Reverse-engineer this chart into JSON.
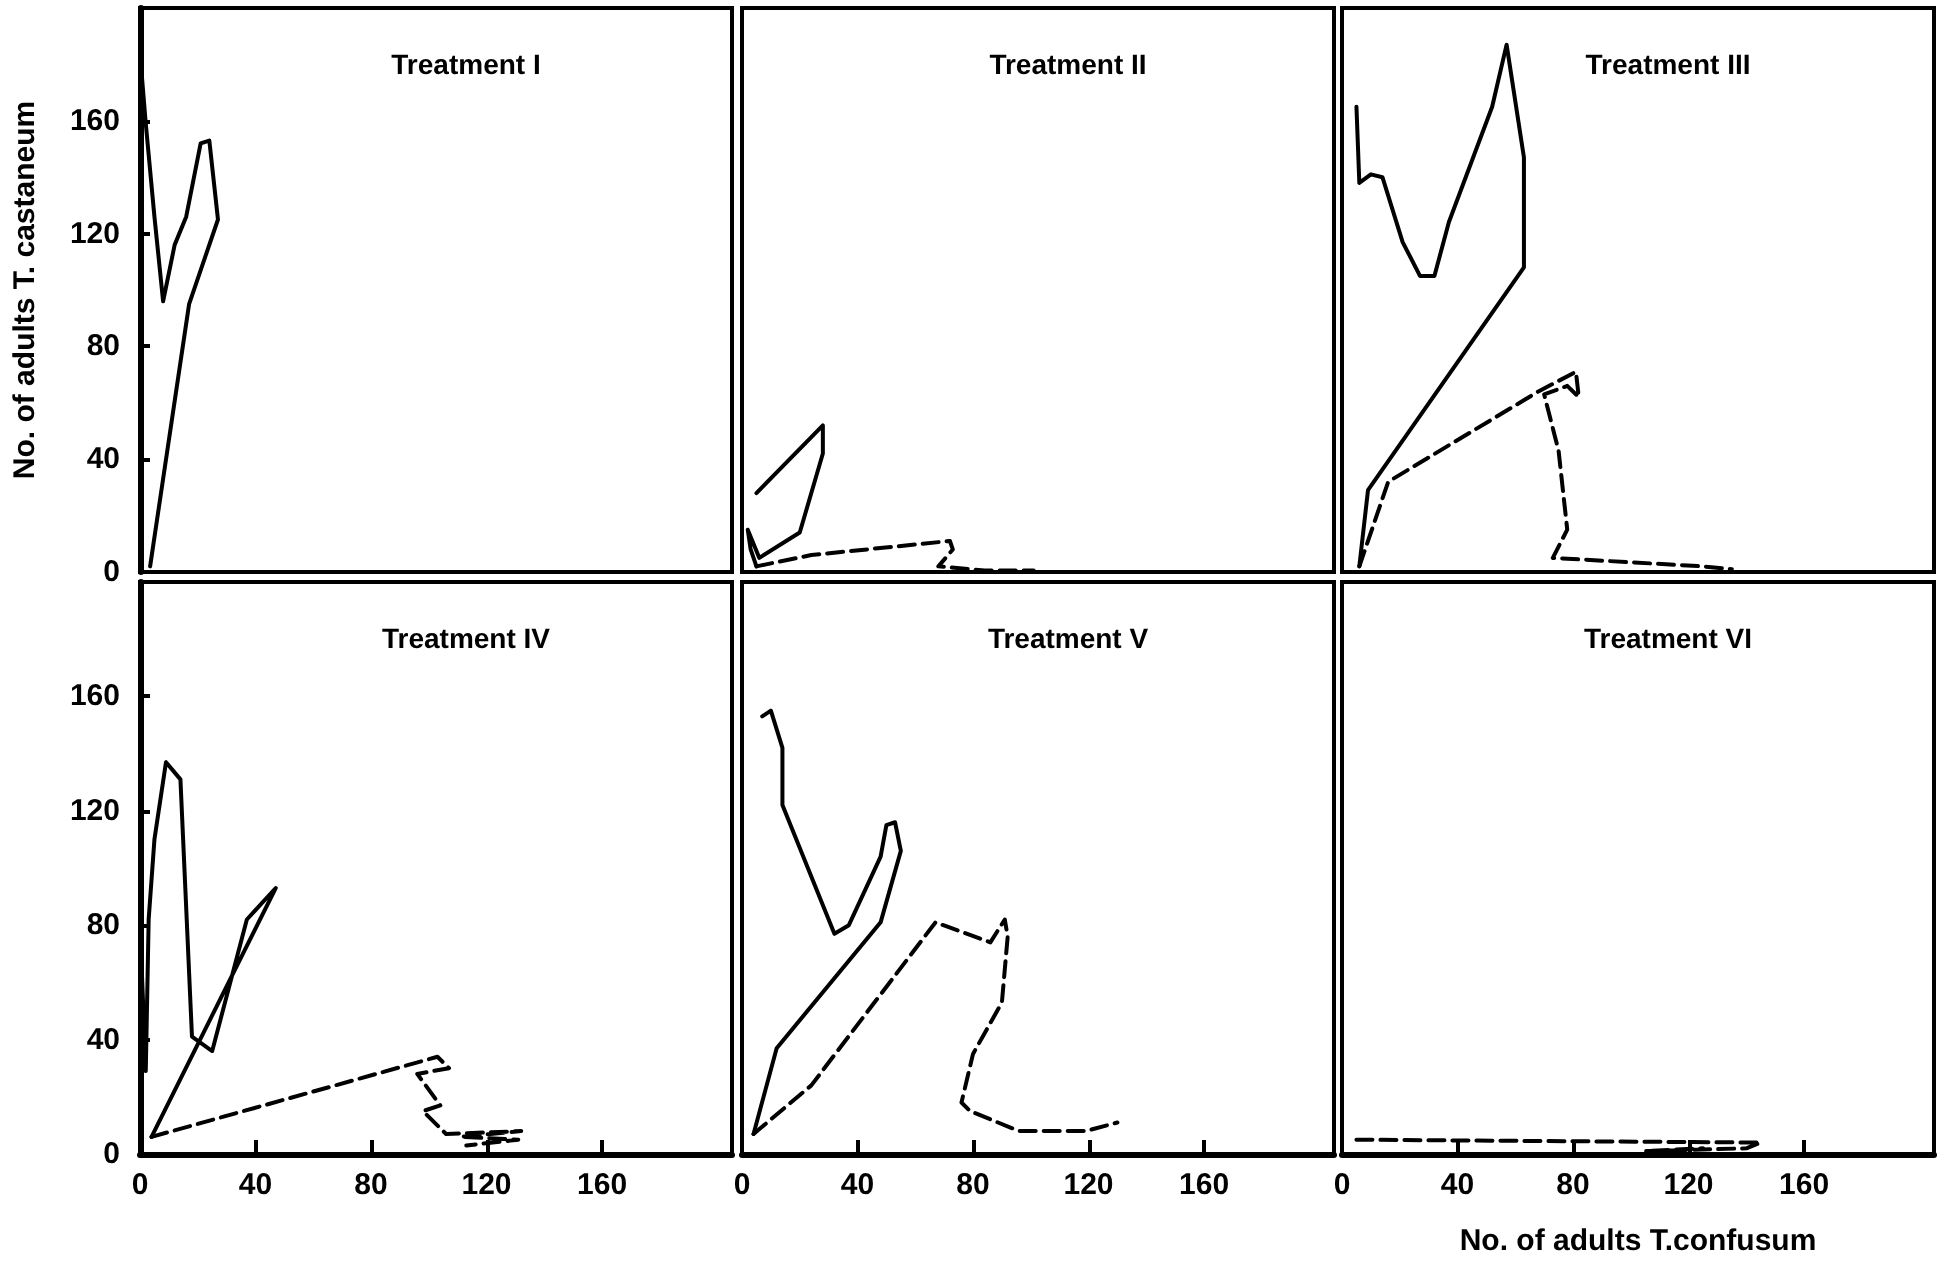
{
  "chart_data": [
    {
      "type": "line",
      "title": "Treatment I",
      "ylabel": "No. of adults T. castaneum",
      "xlim": [
        0,
        205
      ],
      "ylim": [
        0,
        200
      ],
      "xticks": [
        0,
        40,
        80,
        120,
        160
      ],
      "yticks": [
        0,
        40,
        80,
        120,
        160
      ],
      "tick_labels": "y",
      "series": [
        {
          "color": "#000000",
          "line_style": "solid",
          "x": [
            3.5,
            17,
            27,
            24,
            21,
            16,
            12,
            8,
            5,
            2,
            0
          ],
          "values": [
            2,
            95,
            125,
            153,
            152,
            126,
            116,
            96,
            126,
            159,
            184
          ]
        }
      ]
    },
    {
      "type": "line",
      "title": "Treatment II",
      "xlim": [
        0,
        205
      ],
      "ylim": [
        0,
        200
      ],
      "xticks": [
        0,
        40,
        80,
        120,
        160
      ],
      "yticks": [
        0,
        40,
        80,
        120,
        160
      ],
      "tick_labels": false,
      "series": [
        {
          "color": "#000000",
          "line_style": "solid",
          "x": [
            5,
            28,
            28,
            20,
            6,
            2,
            3,
            5
          ],
          "values": [
            28,
            52,
            42,
            14,
            5,
            15,
            8,
            2
          ]
        },
        {
          "color": "#000000",
          "line_style": "dashed",
          "x": [
            5,
            24,
            72,
            73,
            68,
            84,
            101
          ],
          "values": [
            2,
            6,
            11,
            8,
            2,
            0.5,
            0.5
          ]
        }
      ]
    },
    {
      "type": "line",
      "title": "Treatment III",
      "xlim": [
        0,
        205
      ],
      "ylim": [
        0,
        200
      ],
      "xticks": [
        0,
        40,
        80,
        120,
        160
      ],
      "yticks": [
        0,
        40,
        80,
        120,
        160
      ],
      "tick_labels": false,
      "series": [
        {
          "color": "#000000",
          "line_style": "solid",
          "x": [
            6,
            9,
            63,
            63,
            57,
            52,
            37,
            32,
            27,
            21,
            14,
            10,
            6,
            5
          ],
          "values": [
            2,
            29,
            108,
            147,
            187,
            165,
            124,
            105,
            105,
            117,
            140,
            141,
            138,
            165
          ]
        },
        {
          "color": "#000000",
          "line_style": "dashed",
          "x": [
            6,
            16,
            68,
            81,
            82,
            78,
            70,
            75,
            78,
            73,
            125,
            135
          ],
          "values": [
            2,
            32,
            64,
            71,
            62,
            66,
            63,
            43,
            15,
            5,
            2,
            1
          ]
        }
      ]
    },
    {
      "type": "line",
      "title": "Treatment IV",
      "xlim": [
        0,
        205
      ],
      "ylim": [
        0,
        200
      ],
      "xticks": [
        0,
        40,
        80,
        120,
        160
      ],
      "yticks": [
        0,
        40,
        80,
        120,
        160
      ],
      "series": [
        {
          "color": "#000000",
          "line_style": "solid",
          "x": [
            4,
            47,
            37,
            25,
            18,
            14,
            9,
            5,
            3,
            2,
            0,
            1
          ],
          "values": [
            6,
            93,
            82,
            36,
            41,
            131,
            137,
            110,
            82,
            29,
            80,
            38
          ]
        },
        {
          "color": "#000000",
          "line_style": "dashed",
          "x": [
            4,
            103,
            107,
            96,
            104,
            98,
            106,
            132,
            111,
            131,
            113
          ],
          "values": [
            6,
            34,
            30,
            28,
            17,
            15,
            7,
            8,
            6,
            5,
            3
          ]
        }
      ]
    },
    {
      "type": "line",
      "title": "Treatment V",
      "xlim": [
        0,
        205
      ],
      "ylim": [
        0,
        200
      ],
      "xticks": [
        0,
        40,
        80,
        120,
        160
      ],
      "yticks": [
        0,
        40,
        80,
        120,
        160
      ],
      "tick_labels": "x",
      "series": [
        {
          "color": "#000000",
          "line_style": "solid",
          "x": [
            4,
            12,
            48,
            55,
            53,
            50,
            48,
            37,
            32,
            14,
            14,
            10,
            7
          ],
          "values": [
            7,
            37,
            81,
            106,
            116,
            115,
            104,
            80,
            77,
            122,
            142,
            155,
            153
          ]
        },
        {
          "color": "#000000",
          "line_style": "dashed",
          "x": [
            4,
            24,
            67,
            86,
            91,
            92,
            90,
            80,
            76,
            79,
            96,
            119,
            130
          ],
          "values": [
            7,
            24,
            81,
            74,
            82,
            76,
            53,
            35,
            18,
            15,
            8,
            8,
            11
          ]
        }
      ]
    },
    {
      "type": "line",
      "title": "Treatment VI",
      "xlabel": "No. of adults T.confusum",
      "xlim": [
        0,
        205
      ],
      "ylim": [
        0,
        200
      ],
      "xticks": [
        0,
        40,
        80,
        120,
        160
      ],
      "yticks": [
        0,
        40,
        80,
        120,
        160
      ],
      "tick_labels": "x",
      "series": [
        {
          "color": "#000000",
          "line_style": "dashed",
          "x": [
            5,
            145,
            140,
            105,
            125
          ],
          "values": [
            5,
            4,
            2,
            1,
            2
          ]
        }
      ]
    }
  ]
}
